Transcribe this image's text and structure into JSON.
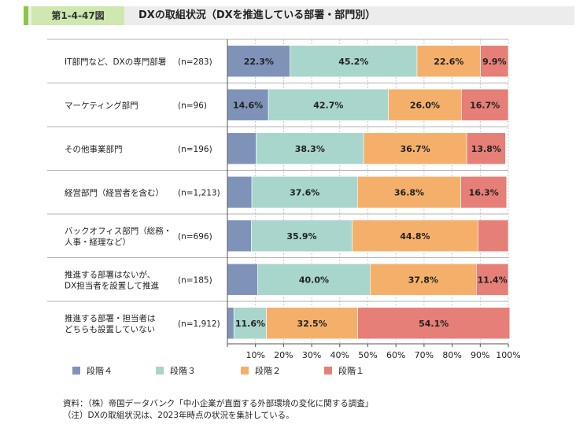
{
  "header": {
    "figure_number": "第1-4-47図",
    "title": "DXの取組状況（DXを推進している部署・部門別）"
  },
  "colors": {
    "level4": "#7f93b8",
    "level3": "#a8d5cc",
    "level2": "#f4b06a",
    "level1": "#e57f77",
    "gridline": "#bbbbbb",
    "separator": "#9a9a9a"
  },
  "chart_data": {
    "type": "bar",
    "orientation": "horizontal",
    "stacked": true,
    "categories": [
      {
        "lines": [
          "IT部門など、DXの専門部署"
        ],
        "n": "(n=283)"
      },
      {
        "lines": [
          "マーケティング部門"
        ],
        "n": "(n=96)"
      },
      {
        "lines": [
          "その他事業部門"
        ],
        "n": "(n=196)"
      },
      {
        "lines": [
          "経営部門（経営者を含む）"
        ],
        "n": "(n=1,213)"
      },
      {
        "lines": [
          "バックオフィス部門（総務・",
          "人事・経理など）"
        ],
        "n": "(n=696)"
      },
      {
        "lines": [
          "推進する部署はないが、",
          "DX担当者を設置して推進"
        ],
        "n": "(n=185)"
      },
      {
        "lines": [
          "推進する部署・担当者は",
          "どちらも設置していない"
        ],
        "n": "(n=1,912)"
      }
    ],
    "series": [
      {
        "name": "段階４",
        "color_key": "level4",
        "values": [
          22.3,
          14.6,
          10.2,
          8.7,
          8.5,
          10.8,
          2.3
        ],
        "labels": [
          "22.3%",
          "14.6%",
          "",
          "",
          "",
          "",
          ""
        ]
      },
      {
        "name": "段階３",
        "color_key": "level3",
        "values": [
          45.2,
          42.7,
          38.3,
          37.6,
          35.9,
          40.0,
          11.6
        ],
        "labels": [
          "45.2%",
          "42.7%",
          "38.3%",
          "37.6%",
          "35.9%",
          "40.0%",
          "11.6%"
        ]
      },
      {
        "name": "段階２",
        "color_key": "level2",
        "values": [
          22.6,
          26.0,
          36.7,
          36.8,
          44.8,
          37.8,
          32.5
        ],
        "labels": [
          "22.6%",
          "26.0%",
          "36.7%",
          "36.8%",
          "44.8%",
          "37.8%",
          "32.5%"
        ]
      },
      {
        "name": "段階１",
        "color_key": "level1",
        "values": [
          9.9,
          16.7,
          13.8,
          16.3,
          10.8,
          11.4,
          54.1
        ],
        "labels": [
          "9.9%",
          "16.7%",
          "13.8%",
          "16.3%",
          "",
          "11.4%",
          "54.1%"
        ]
      }
    ],
    "xlim": [
      0,
      100
    ],
    "xticks": [
      "",
      "10%",
      "20%",
      "30%",
      "40%",
      "50%",
      "60%",
      "70%",
      "80%",
      "90%",
      "100%"
    ],
    "grid": true,
    "legend_position": "bottom"
  },
  "footer": {
    "source": "資料：（株）帝国データバンク「中小企業が直面する外部環境の変化に関する調査」",
    "note": "（注）DXの取組状況は、2023年時点の状況を集計している。"
  }
}
